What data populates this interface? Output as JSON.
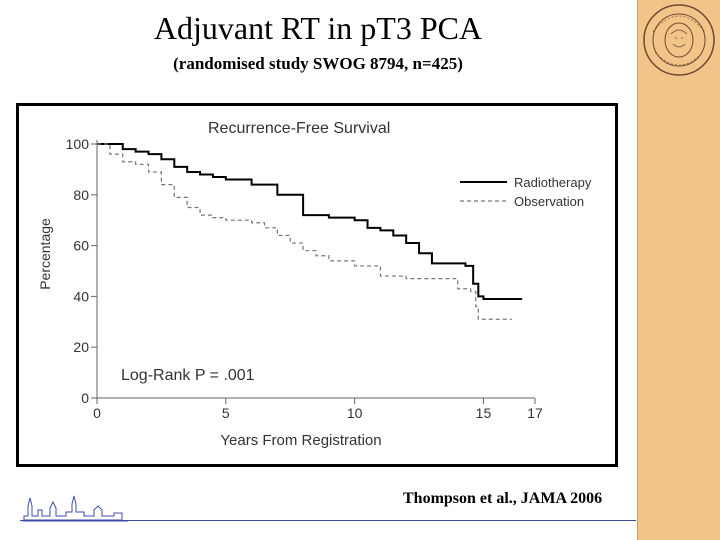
{
  "slide": {
    "title": "Adjuvant RT in pT3 PCA",
    "subtitle": "(randomised study SWOG 8794, n=425)",
    "citation": "Thompson et al., JAMA 2006",
    "seal_text": "Carl Gustav Carus 1789 1869"
  },
  "colors": {
    "sidebar": "#f3c48a",
    "footer_line": "#3d4fa8",
    "radiotherapy": "#000000",
    "observation": "#777777"
  },
  "chart_data": {
    "type": "line",
    "title": "Recurrence-Free Survival",
    "xlabel": "Years From Registration",
    "ylabel": "Percentage",
    "xlim": [
      0,
      17
    ],
    "ylim": [
      0,
      100
    ],
    "xticks": [
      0,
      5,
      10,
      15,
      17
    ],
    "yticks": [
      0,
      20,
      40,
      60,
      80,
      100
    ],
    "annotation": "Log-Rank P = .001",
    "legend_position": "top-right",
    "series": [
      {
        "name": "Radiotherapy",
        "style": "solid",
        "points": [
          [
            0,
            100
          ],
          [
            0.5,
            100
          ],
          [
            1,
            98
          ],
          [
            1.5,
            97
          ],
          [
            2,
            96
          ],
          [
            2.5,
            94
          ],
          [
            3,
            91
          ],
          [
            3.5,
            89
          ],
          [
            4,
            88
          ],
          [
            4.5,
            87
          ],
          [
            5,
            86
          ],
          [
            6,
            84
          ],
          [
            7,
            80
          ],
          [
            8,
            72
          ],
          [
            9,
            71
          ],
          [
            10,
            70
          ],
          [
            10.5,
            67
          ],
          [
            11,
            66
          ],
          [
            11.5,
            64
          ],
          [
            12,
            61
          ],
          [
            12.5,
            57
          ],
          [
            13,
            53
          ],
          [
            14,
            53
          ],
          [
            14.3,
            52
          ],
          [
            14.6,
            45
          ],
          [
            14.8,
            40
          ],
          [
            15,
            39
          ],
          [
            16.5,
            39
          ]
        ]
      },
      {
        "name": "Observation",
        "style": "dashed",
        "points": [
          [
            0,
            100
          ],
          [
            0.5,
            96
          ],
          [
            1,
            93
          ],
          [
            1.5,
            92
          ],
          [
            2,
            89
          ],
          [
            2.5,
            84
          ],
          [
            3,
            79
          ],
          [
            3.5,
            75
          ],
          [
            4,
            72
          ],
          [
            4.5,
            71
          ],
          [
            5,
            70
          ],
          [
            6,
            69
          ],
          [
            6.5,
            67
          ],
          [
            7,
            64
          ],
          [
            7.5,
            61
          ],
          [
            8,
            58
          ],
          [
            8.5,
            56
          ],
          [
            9,
            54
          ],
          [
            10,
            52
          ],
          [
            11,
            48
          ],
          [
            12,
            47
          ],
          [
            13,
            47
          ],
          [
            14,
            43
          ],
          [
            14.5,
            42
          ],
          [
            14.7,
            36
          ],
          [
            14.8,
            31
          ],
          [
            16.1,
            31
          ]
        ]
      }
    ]
  }
}
